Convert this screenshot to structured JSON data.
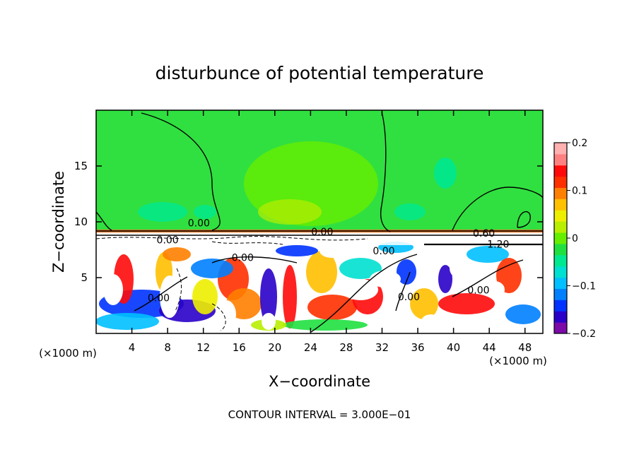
{
  "chart_data": {
    "type": "heatmap",
    "title": "disturbunce of potential temperature",
    "xlabel": "X−coordinate",
    "ylabel": "Z−coordinate",
    "x_unit_left": "(×1000 m)",
    "x_unit_right": "(×1000 m)",
    "footer": "CONTOUR INTERVAL = 3.000E−01",
    "xlim": [
      0,
      50
    ],
    "ylim": [
      0,
      20
    ],
    "x_ticks": [
      4,
      8,
      12,
      16,
      20,
      24,
      28,
      32,
      36,
      40,
      44,
      48
    ],
    "y_ticks": [
      5,
      10,
      15
    ],
    "colorbar": {
      "range": [
        -0.2,
        0.2
      ],
      "tick_values": [
        0.2,
        0.1,
        0,
        -0.1,
        -0.2
      ],
      "tick_labels": [
        "0.2",
        "0.1",
        "0",
        "−0.1",
        "−0.2"
      ],
      "colors": [
        "#7b0aa8",
        "#2a00c8",
        "#0033ff",
        "#0080ff",
        "#00c0ff",
        "#00e0d0",
        "#00e890",
        "#20e040",
        "#66ee00",
        "#b8ee00",
        "#eeee00",
        "#ffc000",
        "#ff8000",
        "#ff3000",
        "#ff0a0a",
        "#ff8080",
        "#ffb0b0"
      ]
    },
    "contour_labels": [
      {
        "text": "0.00",
        "x": 11.5,
        "z": 9.9
      },
      {
        "text": "0.00",
        "x": 8.0,
        "z": 8.4
      },
      {
        "text": "0.00",
        "x": 16.4,
        "z": 6.8
      },
      {
        "text": "0.00",
        "x": 7.0,
        "z": 3.2
      },
      {
        "text": "0.00",
        "x": 25.3,
        "z": 9.1
      },
      {
        "text": "0.00",
        "x": 32.2,
        "z": 7.4
      },
      {
        "text": "0.00",
        "x": 35.0,
        "z": 3.3
      },
      {
        "text": "0.00",
        "x": 42.8,
        "z": 3.9
      },
      {
        "text": "0.60",
        "x": 43.4,
        "z": 9.0
      },
      {
        "text": "1.20",
        "x": 45.0,
        "z": 8.0
      }
    ]
  }
}
